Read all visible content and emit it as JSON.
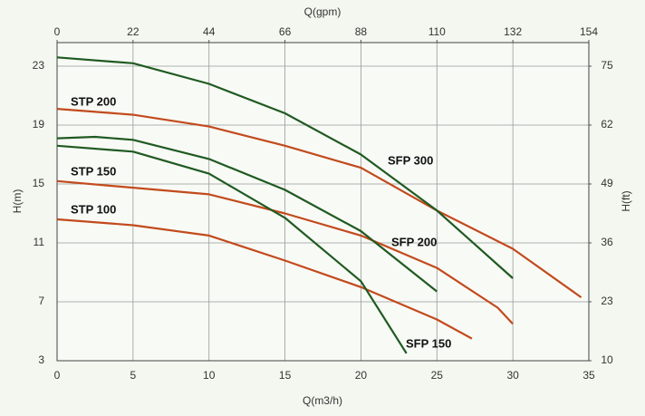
{
  "chart_data": {
    "type": "line",
    "xlabel": "Q(m3/h)",
    "x2label": "Q(gpm)",
    "ylabel": "H(m)",
    "y2label": "H(ft)",
    "xlim": [
      0,
      35
    ],
    "xticks": [
      0,
      5,
      10,
      15,
      20,
      25,
      30,
      35
    ],
    "x2lim": [
      0,
      154
    ],
    "x2ticks": [
      0,
      22,
      44,
      66,
      88,
      110,
      132,
      154
    ],
    "ylim": [
      3,
      24.6
    ],
    "yticks": [
      3,
      7,
      11,
      15,
      19,
      23
    ],
    "y2lim": [
      10,
      80.2
    ],
    "y2ticks": [
      10,
      23,
      36,
      49,
      62,
      75
    ],
    "grid": true,
    "series": [
      {
        "name": "STP 200",
        "color": "#c24a1c",
        "x": [
          0,
          5,
          10,
          15,
          20,
          25,
          30,
          34.5
        ],
        "values": [
          20.1,
          19.7,
          18.9,
          17.6,
          16.1,
          13.2,
          10.6,
          7.3
        ]
      },
      {
        "name": "STP 150",
        "color": "#c24a1c",
        "x": [
          0,
          10,
          15,
          20,
          25,
          29,
          30
        ],
        "values": [
          15.2,
          14.3,
          13.0,
          11.5,
          9.3,
          6.6,
          5.5
        ]
      },
      {
        "name": "STP 100",
        "color": "#c24a1c",
        "x": [
          0,
          5,
          10,
          15,
          20,
          25,
          27.3
        ],
        "values": [
          12.6,
          12.2,
          11.5,
          9.8,
          8.0,
          5.8,
          4.5
        ]
      },
      {
        "name": "SFP 300",
        "color": "#1f5a22",
        "x": [
          0,
          5,
          10,
          15,
          20,
          25,
          30
        ],
        "values": [
          23.6,
          23.2,
          21.8,
          19.8,
          17.0,
          13.2,
          8.6
        ]
      },
      {
        "name": "SFP 200",
        "color": "#1f5a22",
        "x": [
          0,
          2.5,
          5,
          10,
          15,
          20,
          25
        ],
        "values": [
          18.1,
          18.2,
          18.0,
          16.7,
          14.6,
          11.8,
          7.7
        ]
      },
      {
        "name": "SFP 150",
        "color": "#1f5a22",
        "x": [
          0,
          5,
          10,
          15,
          20,
          23
        ],
        "values": [
          17.6,
          17.2,
          15.7,
          12.7,
          8.4,
          3.5
        ]
      }
    ]
  }
}
